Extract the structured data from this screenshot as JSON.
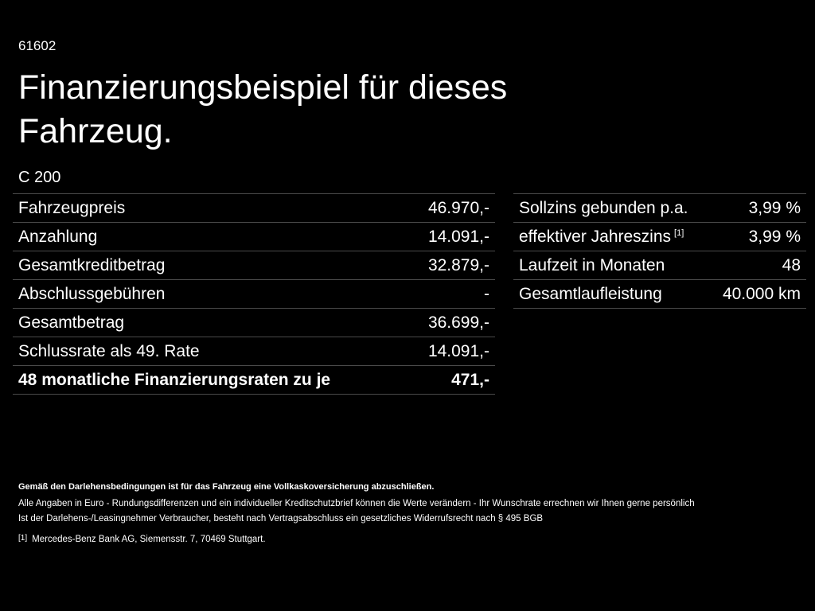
{
  "header": {
    "code": "61602",
    "title_lines": [
      "Finanzierungsbeispiel für dieses",
      "Fahrzeug."
    ],
    "model": "C 200"
  },
  "left_table": {
    "rows": [
      [
        "Fahrzeugpreis",
        "46.970,-"
      ],
      [
        "Anzahlung",
        "14.091,-"
      ],
      [
        "Gesamtkreditbetrag",
        "32.879,-"
      ],
      [
        "Abschlussgebühren",
        "-"
      ],
      [
        "Gesamtbetrag",
        "36.699,-"
      ],
      [
        "Schlussrate als 49. Rate",
        "14.091,-"
      ],
      [
        "48 monatliche Finanzierungsraten zu je",
        "471,-"
      ]
    ]
  },
  "right_table": {
    "rows": [
      {
        "label": "Sollzins gebunden p.a.",
        "value": "3,99 %"
      },
      {
        "label": "effektiver Jahreszins",
        "note": "[1]",
        "value": "3,99 %"
      },
      {
        "label": "Laufzeit in Monaten",
        "value": "48"
      },
      {
        "label": "Gesamtlaufleistung",
        "value": "40.000 km"
      }
    ]
  },
  "footer": {
    "bold_line": "Gemäß den Darlehensbedingungen ist für das Fahrzeug eine Vollkaskoversicherung abzuschließen.",
    "lines": [
      "Alle Angaben in Euro - Rundungsdifferenzen und ein individueller Kreditschutzbrief können die Werte verändern - Ihr Wunschrate errechnen wir Ihnen gerne persönlich",
      "Ist der Darlehens-/Leasingnehmer Verbraucher, besteht nach Vertragsabschluss ein gesetzliches Widerrufsrecht nach § 495 BGB"
    ],
    "footnote": {
      "marker": "[1]",
      "text": "Mercedes-Benz Bank AG, Siemensstr. 7, 70469 Stuttgart."
    }
  }
}
